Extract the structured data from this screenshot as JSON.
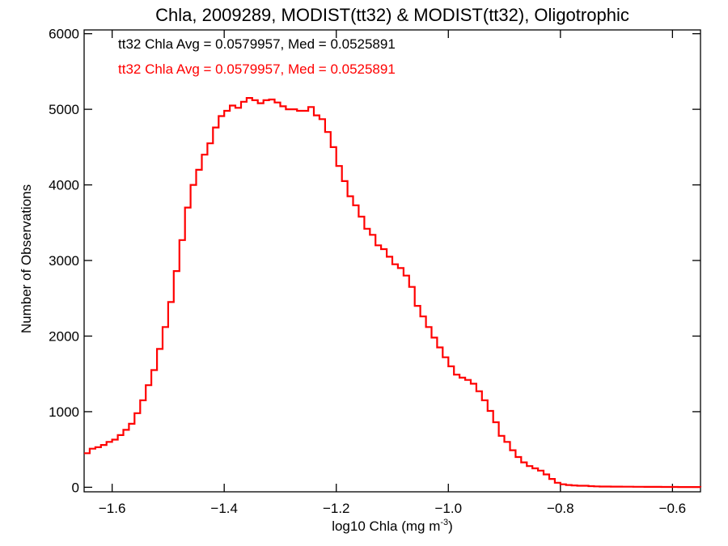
{
  "chart_data": {
    "type": "line",
    "title": "Chla, 2009289, MODIST(tt32) & MODIST(tt32), Oligotrophic",
    "xlabel_main": "log10 Chla (mg m",
    "xlabel_sup": "-3",
    "xlabel_end": ")",
    "ylabel": "Number of Observations",
    "xlim": [
      -1.65,
      -0.55
    ],
    "ylim": [
      -60,
      6050
    ],
    "x_ticks": [
      -1.6,
      -1.4,
      -1.2,
      -1.0,
      -0.8,
      -0.6
    ],
    "x_tick_labels": [
      "−1.6",
      "−1.4",
      "−1.2",
      "−1.0",
      "−0.8",
      "−0.6"
    ],
    "y_ticks": [
      0,
      1000,
      2000,
      3000,
      4000,
      5000,
      6000
    ],
    "y_tick_labels": [
      "0",
      "1000",
      "2000",
      "3000",
      "4000",
      "5000",
      "6000"
    ],
    "grid": false,
    "annotations": [
      {
        "text": "tt32 Chla Avg = 0.0579957, Med = 0.0525891",
        "color": "#000000"
      },
      {
        "text": "tt32 Chla Avg = 0.0579957, Med = 0.0525891",
        "color": "#ff0000"
      }
    ],
    "series": [
      {
        "color": "#ff0000",
        "step": true,
        "x": [
          -1.65,
          -1.64,
          -1.63,
          -1.62,
          -1.61,
          -1.6,
          -1.59,
          -1.58,
          -1.57,
          -1.56,
          -1.55,
          -1.54,
          -1.53,
          -1.52,
          -1.51,
          -1.5,
          -1.49,
          -1.48,
          -1.47,
          -1.46,
          -1.45,
          -1.44,
          -1.43,
          -1.42,
          -1.41,
          -1.4,
          -1.39,
          -1.38,
          -1.37,
          -1.36,
          -1.35,
          -1.34,
          -1.33,
          -1.32,
          -1.31,
          -1.3,
          -1.29,
          -1.28,
          -1.27,
          -1.26,
          -1.25,
          -1.24,
          -1.23,
          -1.22,
          -1.21,
          -1.2,
          -1.19,
          -1.18,
          -1.17,
          -1.16,
          -1.15,
          -1.14,
          -1.13,
          -1.12,
          -1.11,
          -1.1,
          -1.09,
          -1.08,
          -1.07,
          -1.06,
          -1.05,
          -1.04,
          -1.03,
          -1.02,
          -1.01,
          -1.0,
          -0.99,
          -0.98,
          -0.97,
          -0.96,
          -0.95,
          -0.94,
          -0.93,
          -0.92,
          -0.91,
          -0.9,
          -0.89,
          -0.88,
          -0.87,
          -0.86,
          -0.85,
          -0.84,
          -0.83,
          -0.82,
          -0.81,
          -0.8,
          -0.79,
          -0.78,
          -0.77,
          -0.76,
          -0.75,
          -0.74,
          -0.73,
          -0.72,
          -0.71,
          -0.7,
          -0.69,
          -0.68,
          -0.67,
          -0.66,
          -0.65,
          -0.64,
          -0.63,
          -0.62,
          -0.61,
          -0.6,
          -0.59,
          -0.58,
          -0.57,
          -0.56,
          -0.55
        ],
        "y": [
          450,
          510,
          530,
          560,
          600,
          630,
          690,
          760,
          840,
          980,
          1150,
          1350,
          1550,
          1830,
          2120,
          2450,
          2860,
          3270,
          3700,
          4000,
          4200,
          4400,
          4550,
          4760,
          4910,
          4980,
          5050,
          5020,
          5100,
          5150,
          5120,
          5080,
          5120,
          5130,
          5090,
          5040,
          5000,
          5000,
          4980,
          4980,
          5030,
          4920,
          4870,
          4700,
          4500,
          4250,
          4050,
          3850,
          3730,
          3580,
          3420,
          3340,
          3200,
          3150,
          3050,
          2950,
          2900,
          2800,
          2650,
          2400,
          2260,
          2120,
          1980,
          1850,
          1720,
          1600,
          1490,
          1450,
          1420,
          1370,
          1270,
          1150,
          1010,
          860,
          680,
          600,
          490,
          400,
          330,
          280,
          250,
          220,
          170,
          110,
          60,
          40,
          30,
          25,
          20,
          20,
          15,
          12,
          10,
          10,
          8,
          8,
          7,
          7,
          6,
          6,
          5,
          5,
          5,
          4,
          4,
          4,
          3,
          3,
          3,
          3,
          2
        ]
      }
    ]
  }
}
